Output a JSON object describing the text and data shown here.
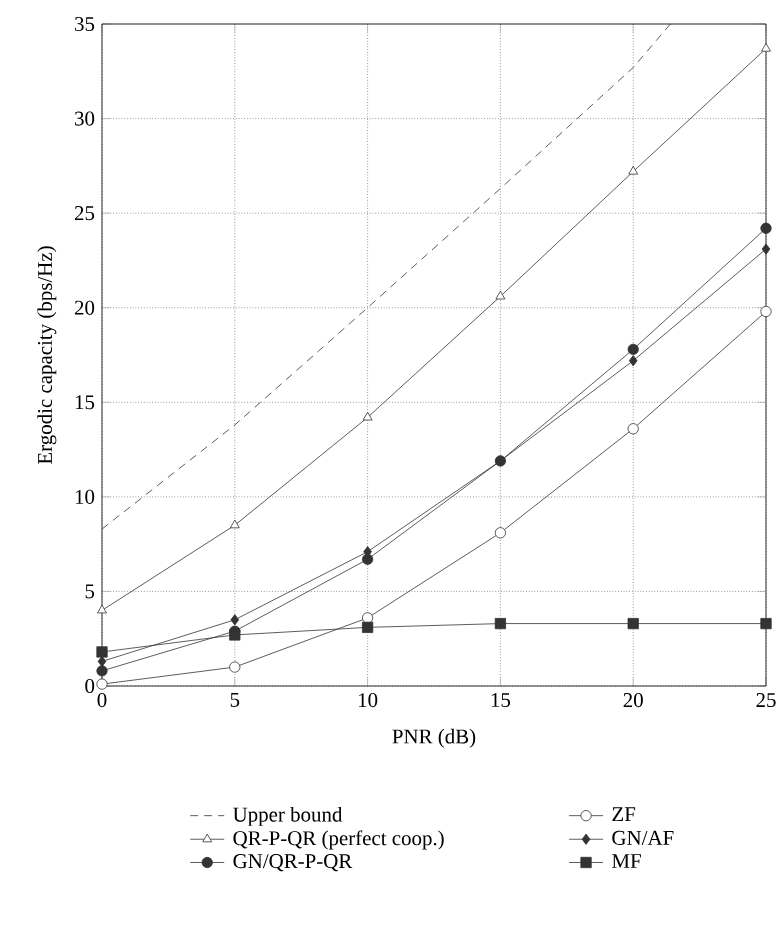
{
  "chart_data": {
    "type": "line",
    "xlabel": "PNR (dB)",
    "ylabel": "Ergodic capacity (bps/Hz)",
    "x": [
      0,
      5,
      10,
      15,
      20,
      25
    ],
    "xlim": [
      0,
      25
    ],
    "xticks": [
      0,
      5,
      10,
      15,
      20,
      25
    ],
    "ylim": [
      0,
      35
    ],
    "yticks": [
      0,
      5,
      10,
      15,
      20,
      25,
      30,
      35
    ],
    "grid": true,
    "legend": "bottom",
    "series": [
      {
        "name": "Upper bound",
        "color": "#333333",
        "x": [
          0,
          5,
          10,
          15,
          20,
          21.4
        ],
        "values": [
          8.3,
          13.8,
          20.0,
          26.3,
          32.7,
          35
        ],
        "line_style": "dashed",
        "marker": "none"
      },
      {
        "name": "ZF",
        "color": "#333333",
        "colors": [
          "#ffffff",
          "#ffffff",
          "#ffffff",
          "#ffffff",
          "#ffffff",
          "#ffffff"
        ],
        "values": [
          0.1,
          1.0,
          3.6,
          8.1,
          13.6,
          19.8
        ],
        "line_style": "solid",
        "marker": "circle"
      },
      {
        "name": "QR-P-QR (perfect coop.)",
        "color": "#333333",
        "colors": [
          "#ffffff",
          "#ffffff",
          "#ffffff",
          "#ffffff",
          "#ffffff",
          "#ffffff"
        ],
        "values": [
          4.0,
          8.5,
          14.2,
          20.6,
          27.2,
          33.7
        ],
        "line_style": "solid",
        "marker": "triangle"
      },
      {
        "name": "GN/AF",
        "color": "#333333",
        "values": [
          1.3,
          3.5,
          7.1,
          11.9,
          17.2,
          23.1
        ],
        "line_style": "solid",
        "marker": "diamond"
      },
      {
        "name": "GN/QR-P-QR",
        "color": "#333333",
        "values": [
          0.8,
          2.9,
          6.7,
          11.9,
          17.8,
          24.2
        ],
        "line_style": "solid",
        "marker": "circle"
      },
      {
        "name": "MF",
        "color": "#333333",
        "values": [
          1.8,
          2.7,
          3.1,
          3.3,
          3.3,
          3.3
        ],
        "line_style": "solid",
        "marker": "square"
      }
    ]
  }
}
